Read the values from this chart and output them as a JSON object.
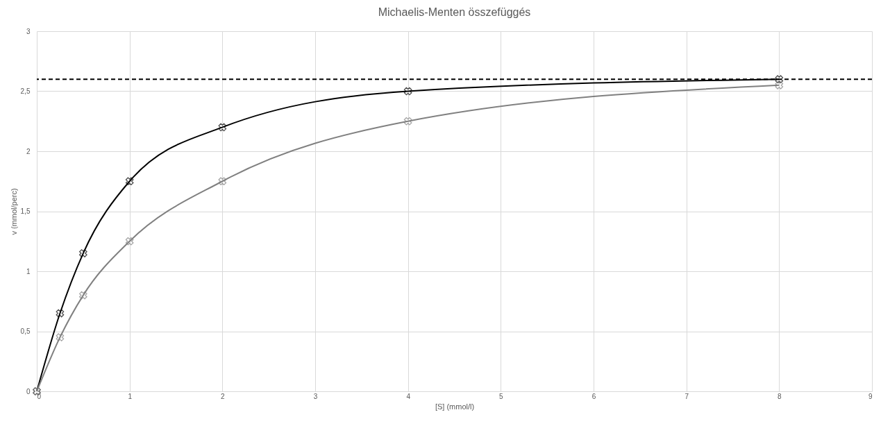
{
  "chart_data": {
    "type": "line",
    "title": "Michaelis-Menten összefüggés",
    "xlabel": "[S] (mmol/l)",
    "ylabel": "v (mmol/perc)",
    "x": [
      0,
      0.25,
      0.5,
      1,
      2,
      4,
      8
    ],
    "series": [
      {
        "color": "#000000",
        "values": [
          0,
          0.65,
          1.15,
          1.75,
          2.2,
          2.5,
          2.6
        ]
      },
      {
        "color": "#808080",
        "values": [
          0,
          0.45,
          0.8,
          1.25,
          1.75,
          2.25,
          2.55
        ]
      }
    ],
    "xlim": [
      0,
      9
    ],
    "xticks": [
      0,
      1,
      2,
      3,
      4,
      5,
      6,
      7,
      8,
      9
    ],
    "ylim": [
      0,
      3
    ],
    "yticks": [
      0,
      {
        "value": 0.5,
        "label": "0,5"
      },
      1,
      {
        "value": 1.5,
        "label": "1,5"
      },
      2,
      {
        "value": 2.5,
        "label": "2,5"
      },
      3
    ],
    "ref_lines": [
      {
        "axis": "y",
        "value": 2.6,
        "color": "#000000",
        "line_style": "dashed"
      }
    ],
    "grid": true,
    "marker": "cross"
  }
}
